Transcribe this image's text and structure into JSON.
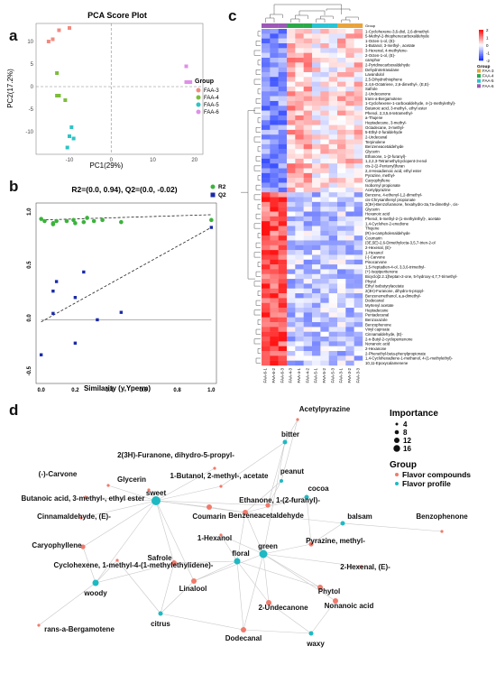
{
  "figure": {
    "panels": {
      "a": "a",
      "b": "b",
      "c": "c",
      "d": "d"
    }
  },
  "pca": {
    "title": "PCA Score Plot",
    "xlabel": "PC1(29%)",
    "ylabel": "PC2(17.2%)",
    "x_ticks": [
      "-10",
      "0",
      "10",
      "20"
    ],
    "y_ticks": [
      "10",
      "5",
      "0",
      "-5",
      "-10"
    ],
    "legend_title": "Group",
    "groups": [
      {
        "name": "FAA-3",
        "color": "#f08b80"
      },
      {
        "name": "FAA-4",
        "color": "#7cbd3b"
      },
      {
        "name": "FAA-5",
        "color": "#2fc4c4"
      },
      {
        "name": "FAA-6",
        "color": "#e08fe8"
      }
    ]
  },
  "chart_data": [
    {
      "type": "scatter",
      "title": "PCA Score Plot",
      "xlabel": "PC1(29%)",
      "ylabel": "PC2(17.2%)",
      "xlim": [
        -18,
        22
      ],
      "ylim": [
        -15,
        14
      ],
      "series": [
        {
          "name": "FAA-3",
          "points": [
            [
              -14,
              10.5
            ],
            [
              -12.5,
              12.5
            ],
            [
              -10,
              13
            ],
            [
              -15,
              10
            ]
          ]
        },
        {
          "name": "FAA-4",
          "points": [
            [
              -13,
              3
            ],
            [
              -12.5,
              -2
            ],
            [
              -13,
              -2
            ],
            [
              -11,
              -3
            ]
          ]
        },
        {
          "name": "FAA-5",
          "points": [
            [
              -9.5,
              -9
            ],
            [
              -10,
              -11
            ],
            [
              -9,
              -11.5
            ],
            [
              -10.5,
              -13.5
            ]
          ]
        },
        {
          "name": "FAA-6",
          "points": [
            [
              18,
              4.5
            ],
            [
              19,
              1
            ],
            [
              18.5,
              1
            ],
            [
              18,
              1
            ]
          ]
        }
      ]
    },
    {
      "type": "scatter",
      "title": "R2=(0.0, 0.94), Q2=(0.0, -0.02)",
      "xlabel": "Similarity",
      "xlabel_suffix": "(y,Yperm)",
      "xlim": [
        -0.03,
        1.03
      ],
      "ylim": [
        -0.6,
        1.1
      ],
      "x_ticks": [
        "0.0",
        "0.2",
        "0.4",
        "0.6",
        "0.8",
        "1.0"
      ],
      "y_ticks": [
        "1.0",
        "0.5",
        "0.0",
        "-0.5"
      ],
      "legend": [
        "R2",
        "Q2"
      ],
      "series": [
        {
          "name": "R2",
          "color": "#3bb33b",
          "points": [
            [
              0,
              0.95
            ],
            [
              0.02,
              0.93
            ],
            [
              0.07,
              0.91
            ],
            [
              0.07,
              0.9
            ],
            [
              0.09,
              0.93
            ],
            [
              0.15,
              0.93
            ],
            [
              0.19,
              0.94
            ],
            [
              0.2,
              0.91
            ],
            [
              0.25,
              0.92
            ],
            [
              0.27,
              0.96
            ],
            [
              0.31,
              0.93
            ],
            [
              0.36,
              0.94
            ],
            [
              0.47,
              0.92
            ],
            [
              1.0,
              0.94
            ]
          ]
        },
        {
          "name": "Q2",
          "color": "#1a2aa8",
          "points": [
            [
              0,
              -0.33
            ],
            [
              0.07,
              0.27
            ],
            [
              0.07,
              0.06
            ],
            [
              0.09,
              0.36
            ],
            [
              0.2,
              0.21
            ],
            [
              0.2,
              -0.22
            ],
            [
              0.25,
              0.45
            ],
            [
              0.33,
              0.0
            ],
            [
              0.47,
              0.07
            ],
            [
              1.0,
              0.87
            ]
          ]
        }
      ]
    }
  ],
  "heatmap": {
    "legend_title": "Group",
    "scale_ticks": [
      "2",
      "1",
      "0",
      "-1",
      "-2"
    ],
    "groups": [
      {
        "name": "FAA-3",
        "color": "#e8a33d"
      },
      {
        "name": "FAA-4",
        "color": "#2ba94a"
      },
      {
        "name": "FAA-5",
        "color": "#29c3d3"
      },
      {
        "name": "FAA-6",
        "color": "#9c59b6"
      }
    ],
    "columns": [
      "FAA-6-1",
      "FAA-6-2",
      "FAA-6-3",
      "FAA-4-3",
      "FAA-4-1",
      "FAA-4-2",
      "FAA-5-1",
      "FAA-5-2",
      "FAA-5-3",
      "FAA-3-1",
      "FAA-3-2",
      "FAA-3-3"
    ],
    "rows": [
      "1-Cyclohexene-3,6-diol, 2,6-dimethyl-",
      "5-Methyl-2-thiophenecarboxaldehyde",
      "1-Octen-1-ol, (E)-",
      "1-Butanol, 3-methyl-, acetate",
      "3-Hexenal, 4-methylene-",
      "2-Octen-1-ol, (E)-",
      "camphor",
      "2-Pyridinecarboxaldehyde",
      "Dehydrotetrasulane",
      "Lavandulol",
      "2,5-Dihydrothiophene",
      "2,4,6-Octatriene, 2,6-dimethyl-, (E,E)-",
      "Safrole",
      "2-Undecanone",
      "trans-a-Bergamotene",
      "1-Cyclohexene-1-carboxaldehyde, 4-(1-methylethyl)-",
      "Butanoic acid, 3-methyl-, ethyl ester",
      "Phenol, 2,3,5,6-tetramethyl-",
      "a-Thujene",
      "Heptadecane, 3-methyl-",
      "Octadecane, 3-methyl-",
      "5-Ethyl-2-furaldehyde",
      "2-Undecanal",
      "Terpinolene",
      "Benzeneacetaldehyde",
      "Glycerin",
      "Ethanone, 1-(2-furanyl)-",
      "1,2,2,3-Tetramethylcyclopent-3-enol",
      "cis-2-(2-Pentenyl)furan",
      "2,4-Hexadienoic acid, ethyl ester",
      "Pyrazine, methyl-",
      "Caryophyllene",
      "Isobornyl propionate",
      "Acetylpyrazine",
      "Benzene, 4-ethenyl-1,2-dimethyl-",
      "cis-Chrysanthenyl propionate",
      "2(3H)-Benzofuranone, hexahydro-3a,7a-dimethyl-, cis-",
      "Glycerin",
      "Hexanoic acid",
      "Phenol, 5-methyl-2-(1-methylethyl)-, acetate",
      "1,4-Cyclohex-2-enedione",
      "Thujene",
      "(R)-a-campholenaldehyde",
      "Coumarin",
      "(3E,5E)-2,6-Dimethylocta-3,5,7-trien-2-ol",
      "2-Hexenal, (E)-",
      "1-Hexanol",
      "(-)-Carvone",
      "Pinocarvone",
      "1,5-Heptadien-4-ol, 3,3,6-trimethyl-",
      "(+)-Isopiperitenone",
      "Bicyclo[2.2.1]heptan-2-one, 5-hydroxy-4,7,7-trimethyl-",
      "Phytol",
      "Ethyl isobutyrylacetate",
      "2(3H)-Furanone, dihydro-5-propyl-",
      "Benzenemethanol, a,a-dimethyl-",
      "Dodecanal",
      "Myrtenyl acetate",
      "Heptadecane",
      "Pentadecanal",
      "Benzoxazole",
      "Benzophenone",
      "Vinyl caproate",
      "Cinnamaldehyde, (E)-",
      "2-n-Butyl-2-cyclopentenone",
      "Nonanoic acid",
      "2-Hexanone",
      "2-Phenethyl-beta-phenylpropionate",
      "1,4-Cyclohexadiene-1-methanol, 4-(1-methylethyl)-",
      "10,11-Epoxycalamenene"
    ]
  },
  "network": {
    "importance_title": "Importance",
    "importance_sizes": [
      "4",
      "8",
      "12",
      "16"
    ],
    "group_title": "Group",
    "group_items": [
      {
        "name": "Flavor compounds",
        "color": "#f07a6b"
      },
      {
        "name": "Flavor profile",
        "color": "#1fb9c3"
      }
    ],
    "compounds": [
      "Acetylpyrazine",
      "2(3H)-Furanone, dihydro-5-propyl-",
      "(-)-Carvone",
      "Glycerin",
      "1-Butanol, 2-methyl-, acetate",
      "Butanoic acid, 3-methyl-, ethyl ester",
      "Ethanone, 1-(2-furanyl)-",
      "Cinnamaldehyde, (E)-",
      "Coumarin",
      "Benzeneacetaldehyde",
      "Benzophenone",
      "Caryophyllene",
      "1-Hexanol",
      "Pyrazine, methyl-",
      "Cyclohexene, 1-methyl-4-(1-methylethylidene)-",
      "Safrole",
      "Linalool",
      "2-Hexenal, (E)-",
      "Phytol",
      "rans-a-Bergamotene",
      "2-Undecanone",
      "Nonanoic acid",
      "Dodecanal"
    ],
    "profiles": [
      "bitter",
      "peanut",
      "cocoa",
      "sweet",
      "balsam",
      "green",
      "floral",
      "woody",
      "citrus",
      "waxy"
    ]
  }
}
